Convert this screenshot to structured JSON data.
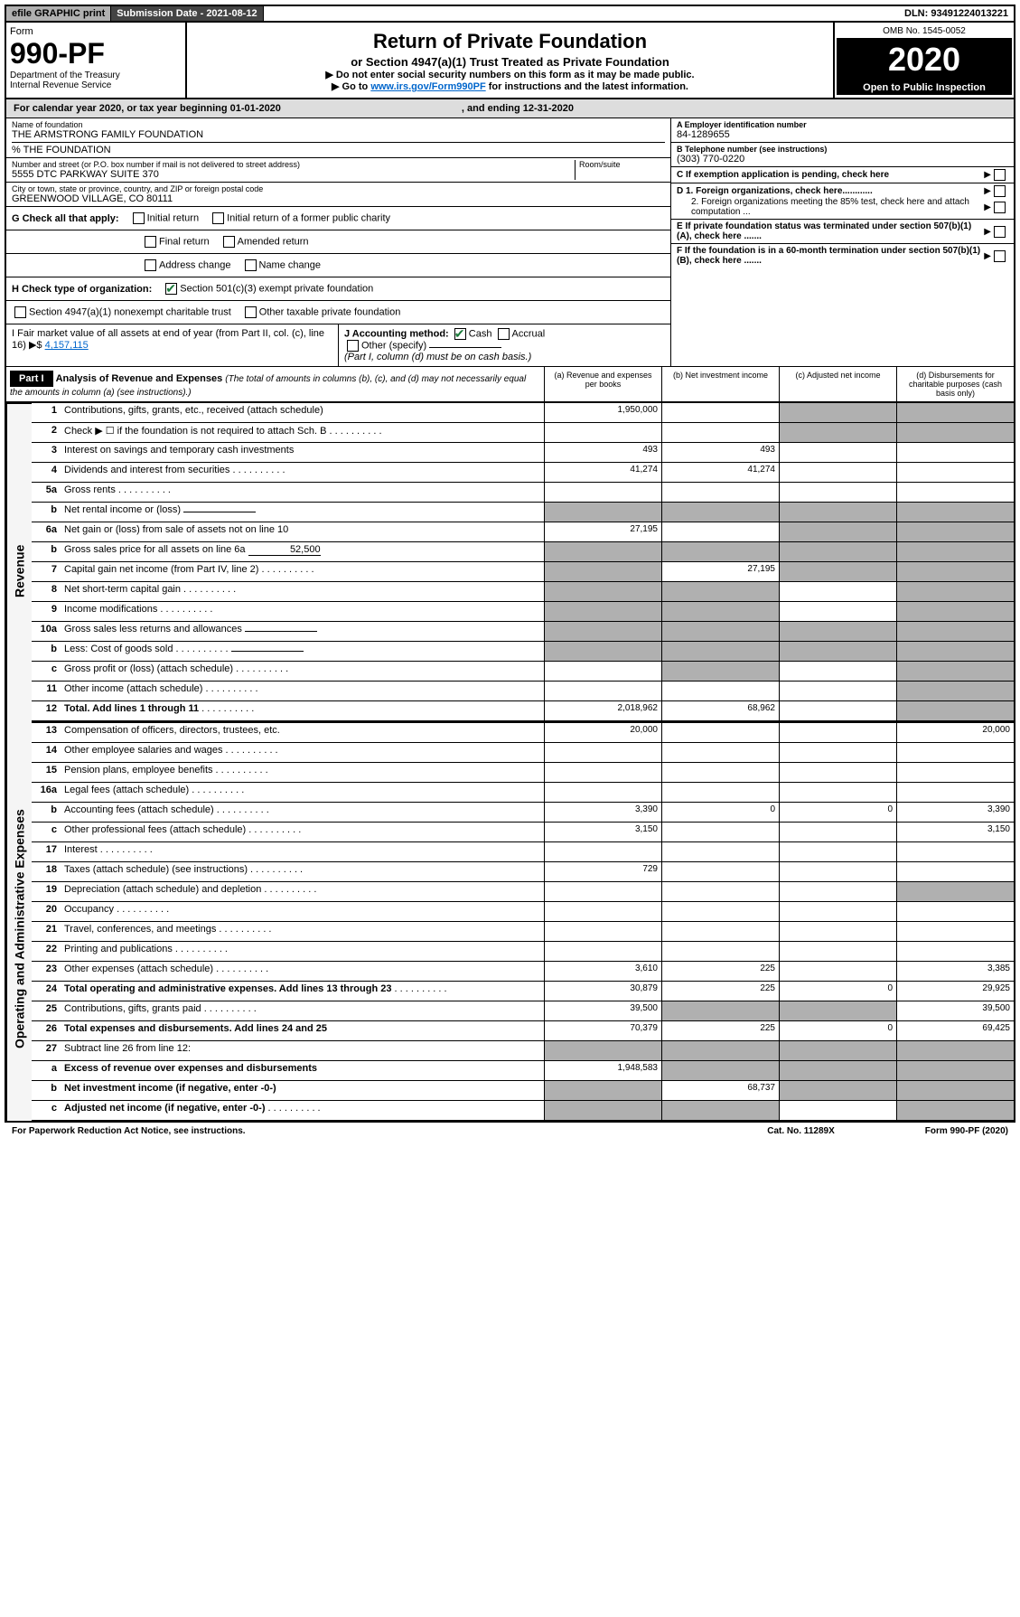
{
  "topbar": {
    "efile": "efile GRAPHIC print",
    "subdate_label": "Submission Date - 2021-08-12",
    "dln": "DLN: 93491224013221"
  },
  "header": {
    "form_label": "Form",
    "form_num": "990-PF",
    "dept": "Department of the Treasury",
    "irs": "Internal Revenue Service",
    "title": "Return of Private Foundation",
    "subtitle": "or Section 4947(a)(1) Trust Treated as Private Foundation",
    "note1": "▶ Do not enter social security numbers on this form as it may be made public.",
    "note2": "▶ Go to ",
    "note2_link": "www.irs.gov/Form990PF",
    "note2_suffix": " for instructions and the latest information.",
    "omb": "OMB No. 1545-0052",
    "year": "2020",
    "inspection": "Open to Public Inspection"
  },
  "calyear": {
    "prefix": "For calendar year 2020, or tax year beginning 01-01-2020",
    "suffix": ", and ending 12-31-2020"
  },
  "name": {
    "label": "Name of foundation",
    "val": "THE ARMSTRONG FAMILY FOUNDATION",
    "care": "% THE FOUNDATION"
  },
  "addr": {
    "label": "Number and street (or P.O. box number if mail is not delivered to street address)",
    "val": "5555 DTC PARKWAY SUITE 370",
    "room": "Room/suite"
  },
  "city": {
    "label": "City or town, state or province, country, and ZIP or foreign postal code",
    "val": "GREENWOOD VILLAGE, CO  80111"
  },
  "ein": {
    "label": "A Employer identification number",
    "val": "84-1289655"
  },
  "phone": {
    "label": "B Telephone number (see instructions)",
    "val": "(303) 770-0220"
  },
  "c": {
    "label": "C If exemption application is pending, check here"
  },
  "d": {
    "d1": "D 1. Foreign organizations, check here............",
    "d2": "2. Foreign organizations meeting the 85% test, check here and attach computation ..."
  },
  "e": {
    "label": "E  If private foundation status was terminated under section 507(b)(1)(A), check here ......."
  },
  "f": {
    "label": "F  If the foundation is in a 60-month termination under section 507(b)(1)(B), check here ......."
  },
  "g": {
    "label": "G Check all that apply:",
    "initial": "Initial return",
    "initial_pub": "Initial return of a former public charity",
    "final": "Final return",
    "amended": "Amended return",
    "addr": "Address change",
    "name": "Name change"
  },
  "h": {
    "label": "H Check type of organization:",
    "s501": "Section 501(c)(3) exempt private foundation",
    "s4947": "Section 4947(a)(1) nonexempt charitable trust",
    "other": "Other taxable private foundation"
  },
  "i": {
    "label": "I Fair market value of all assets at end of year (from Part II, col. (c), line 16)  ▶$",
    "val": "4,157,115"
  },
  "j": {
    "label": "J Accounting method:",
    "cash": "Cash",
    "accrual": "Accrual",
    "other": "Other (specify)",
    "note": "(Part I, column (d) must be on cash basis.)"
  },
  "part1": {
    "label": "Part I",
    "title": "Analysis of Revenue and Expenses",
    "note": "(The total of amounts in columns (b), (c), and (d) may not necessarily equal the amounts in column (a) (see instructions).)",
    "cols": {
      "a": "(a)  Revenue and expenses per books",
      "b": "(b)  Net investment income",
      "c": "(c)  Adjusted net income",
      "d": "(d)  Disbursements for charitable purposes (cash basis only)"
    }
  },
  "side": {
    "rev": "Revenue",
    "exp": "Operating and Administrative Expenses"
  },
  "rows": [
    {
      "n": "1",
      "d": "Contributions, gifts, grants, etc., received (attach schedule)",
      "a": "1,950,000",
      "shaded_c": true,
      "shaded_d": true
    },
    {
      "n": "2",
      "d": "Check ▶ ☐ if the foundation is not required to attach Sch. B",
      "dots": true,
      "shaded_c": true,
      "shaded_d": true
    },
    {
      "n": "3",
      "d": "Interest on savings and temporary cash investments",
      "a": "493",
      "b": "493"
    },
    {
      "n": "4",
      "d": "Dividends and interest from securities",
      "dots": true,
      "a": "41,274",
      "b": "41,274"
    },
    {
      "n": "5a",
      "d": "Gross rents",
      "dots": true
    },
    {
      "n": "b",
      "d": "Net rental income or (loss)",
      "underline": true,
      "shaded_all": true
    },
    {
      "n": "6a",
      "d": "Net gain or (loss) from sale of assets not on line 10",
      "a": "27,195",
      "shaded_c": true,
      "shaded_d": true
    },
    {
      "n": "b",
      "d": "Gross sales price for all assets on line 6a",
      "inline_val": "52,500",
      "shaded_all": true
    },
    {
      "n": "7",
      "d": "Capital gain net income (from Part IV, line 2)",
      "dots": true,
      "b": "27,195",
      "shaded_a": true,
      "shaded_c": true,
      "shaded_d": true
    },
    {
      "n": "8",
      "d": "Net short-term capital gain",
      "dots": true,
      "shaded_a": true,
      "shaded_b": true,
      "shaded_d": true
    },
    {
      "n": "9",
      "d": "Income modifications",
      "dots": true,
      "shaded_a": true,
      "shaded_b": true,
      "shaded_d": true
    },
    {
      "n": "10a",
      "d": "Gross sales less returns and allowances",
      "underline": true,
      "shaded_all": true
    },
    {
      "n": "b",
      "d": "Less: Cost of goods sold",
      "dots": true,
      "underline": true,
      "shaded_all": true
    },
    {
      "n": "c",
      "d": "Gross profit or (loss) (attach schedule)",
      "dots": true,
      "shaded_b": true,
      "shaded_d": true
    },
    {
      "n": "11",
      "d": "Other income (attach schedule)",
      "dots": true,
      "shaded_d": true
    },
    {
      "n": "12",
      "d": "Total. Add lines 1 through 11",
      "dots": true,
      "bold": true,
      "a": "2,018,962",
      "b": "68,962",
      "shaded_d": true
    }
  ],
  "exp_rows": [
    {
      "n": "13",
      "d": "Compensation of officers, directors, trustees, etc.",
      "a": "20,000",
      "d_val": "20,000"
    },
    {
      "n": "14",
      "d": "Other employee salaries and wages",
      "dots": true
    },
    {
      "n": "15",
      "d": "Pension plans, employee benefits",
      "dots": true
    },
    {
      "n": "16a",
      "d": "Legal fees (attach schedule)",
      "dots": true
    },
    {
      "n": "b",
      "d": "Accounting fees (attach schedule)",
      "dots": true,
      "a": "3,390",
      "b": "0",
      "c": "0",
      "d_val": "3,390"
    },
    {
      "n": "c",
      "d": "Other professional fees (attach schedule)",
      "dots": true,
      "a": "3,150",
      "d_val": "3,150"
    },
    {
      "n": "17",
      "d": "Interest",
      "dots": true
    },
    {
      "n": "18",
      "d": "Taxes (attach schedule) (see instructions)",
      "dots": true,
      "a": "729"
    },
    {
      "n": "19",
      "d": "Depreciation (attach schedule) and depletion",
      "dots": true,
      "shaded_d": true
    },
    {
      "n": "20",
      "d": "Occupancy",
      "dots": true
    },
    {
      "n": "21",
      "d": "Travel, conferences, and meetings",
      "dots": true
    },
    {
      "n": "22",
      "d": "Printing and publications",
      "dots": true
    },
    {
      "n": "23",
      "d": "Other expenses (attach schedule)",
      "dots": true,
      "a": "3,610",
      "b": "225",
      "d_val": "3,385"
    },
    {
      "n": "24",
      "d": "Total operating and administrative expenses. Add lines 13 through 23",
      "dots": true,
      "bold": true,
      "a": "30,879",
      "b": "225",
      "c": "0",
      "d_val": "29,925"
    },
    {
      "n": "25",
      "d": "Contributions, gifts, grants paid",
      "dots": true,
      "a": "39,500",
      "shaded_b": true,
      "shaded_c": true,
      "d_val": "39,500"
    },
    {
      "n": "26",
      "d": "Total expenses and disbursements. Add lines 24 and 25",
      "bold": true,
      "a": "70,379",
      "b": "225",
      "c": "0",
      "d_val": "69,425"
    },
    {
      "n": "27",
      "d": "Subtract line 26 from line 12:",
      "shaded_all": true
    },
    {
      "n": "a",
      "d": "Excess of revenue over expenses and disbursements",
      "bold": true,
      "a": "1,948,583",
      "shaded_b": true,
      "shaded_c": true,
      "shaded_d": true
    },
    {
      "n": "b",
      "d": "Net investment income (if negative, enter -0-)",
      "bold": true,
      "b": "68,737",
      "shaded_a": true,
      "shaded_c": true,
      "shaded_d": true
    },
    {
      "n": "c",
      "d": "Adjusted net income (if negative, enter -0-)",
      "dots": true,
      "bold": true,
      "shaded_a": true,
      "shaded_b": true,
      "shaded_d": true
    }
  ],
  "footer": {
    "left": "For Paperwork Reduction Act Notice, see instructions.",
    "mid": "Cat. No. 11289X",
    "right": "Form 990-PF (2020)"
  }
}
